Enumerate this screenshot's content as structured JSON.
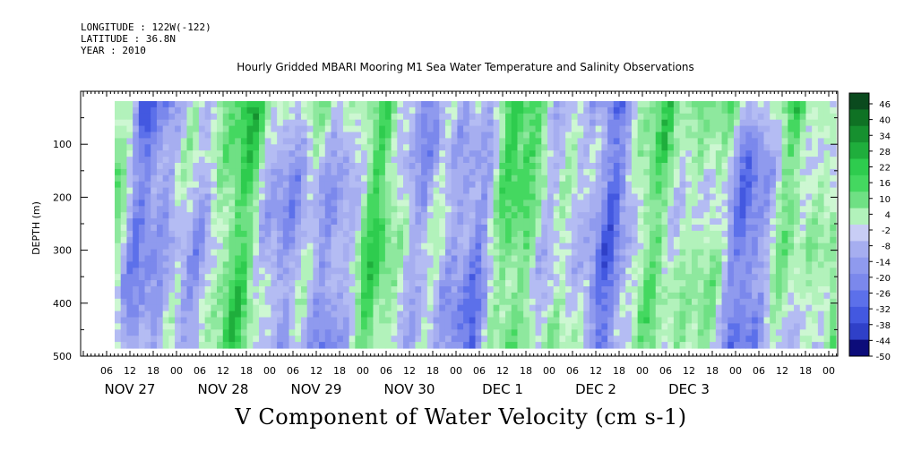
{
  "header": {
    "longitude": "LONGITUDE : 122W(-122)",
    "latitude": "LATITUDE : 36.8N",
    "year": "YEAR : 2010"
  },
  "chart_data": {
    "type": "heatmap",
    "title": "Hourly Gridded MBARI Mooring M1 Sea Water Temperature and Salinity Observations",
    "xlabel": "V Component of Water Velocity (cm s-1)",
    "ylabel": "DEPTH (m)",
    "ylim": [
      500,
      0
    ],
    "y_ticks": [
      100,
      200,
      300,
      400,
      500
    ],
    "x_hour_ticks": [
      "06",
      "12",
      "18",
      "00",
      "06",
      "12",
      "18",
      "00",
      "06",
      "12",
      "18",
      "00",
      "06",
      "12",
      "18",
      "00",
      "06",
      "12",
      "18",
      "00",
      "06",
      "12",
      "18",
      "00",
      "06",
      "12",
      "18",
      "00",
      "06",
      "12",
      "18",
      "00"
    ],
    "x_day_labels": [
      "NOV 27",
      "NOV 28",
      "NOV 29",
      "NOV 30",
      "DEC  1",
      "DEC  2",
      "DEC  3"
    ],
    "colorbar": {
      "labels": [
        "46",
        "40",
        "34",
        "28",
        "22",
        "16",
        "10",
        "4",
        "-2",
        "-8",
        "-14",
        "-20",
        "-26",
        "-32",
        "-38",
        "-44",
        "-50"
      ],
      "min": -50,
      "max": 46
    },
    "colors": {
      "strong_positive": "#0a4a1e",
      "positive": "#44d860",
      "weak_positive": "#8ee89e",
      "weak_negative": "#a6aef0",
      "negative": "#5c70ea",
      "strong_negative": "#0c0c7a"
    }
  }
}
